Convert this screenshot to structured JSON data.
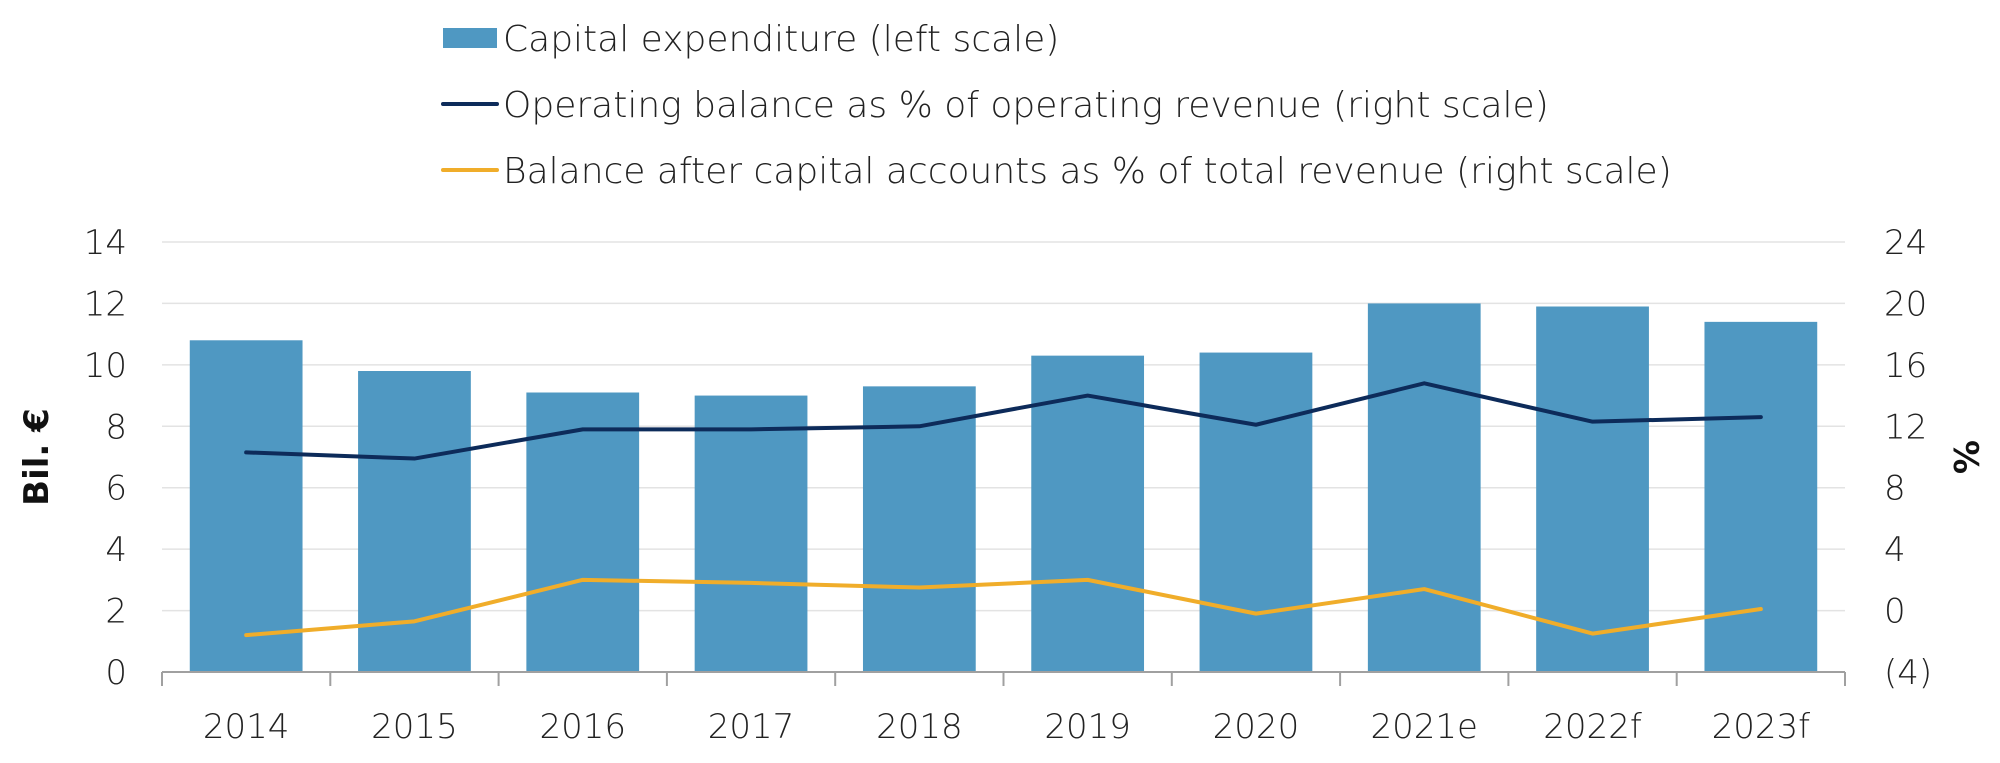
{
  "chart_data": {
    "type": "bar",
    "categories": [
      "2014",
      "2015",
      "2016",
      "2017",
      "2018",
      "2019",
      "2020",
      "2021e",
      "2022f",
      "2023f"
    ],
    "series": [
      {
        "name": "Capital expenditure (left scale)",
        "type": "bar",
        "axis": "left",
        "values": [
          10.8,
          9.8,
          9.1,
          9.0,
          9.3,
          10.3,
          10.4,
          12.0,
          11.9,
          11.4
        ],
        "color": "#4f98c2"
      },
      {
        "name": "Operating balance as % of operating revenue (right scale)",
        "type": "line",
        "axis": "right",
        "values": [
          10.3,
          9.9,
          11.8,
          11.8,
          12.0,
          14.0,
          12.1,
          14.8,
          12.3,
          12.6
        ],
        "color": "#0d2b5a"
      },
      {
        "name": "Balance after capital accounts as % of total revenue (right scale)",
        "type": "line",
        "axis": "right",
        "values": [
          -1.6,
          -0.7,
          2.0,
          1.8,
          1.5,
          2.0,
          -0.2,
          1.4,
          -1.5,
          0.1
        ],
        "color": "#f0ad2a"
      }
    ],
    "ylabel": "Bil. €",
    "y2label": "%",
    "ylim": [
      0,
      14
    ],
    "y2lim": [
      -4,
      24
    ],
    "yticks": [
      "0",
      "2",
      "4",
      "6",
      "8",
      "10",
      "12",
      "14"
    ],
    "y2ticks": [
      "(4)",
      "0",
      "4",
      "8",
      "12",
      "16",
      "20",
      "24"
    ],
    "grid": true,
    "legend_position": "top"
  }
}
